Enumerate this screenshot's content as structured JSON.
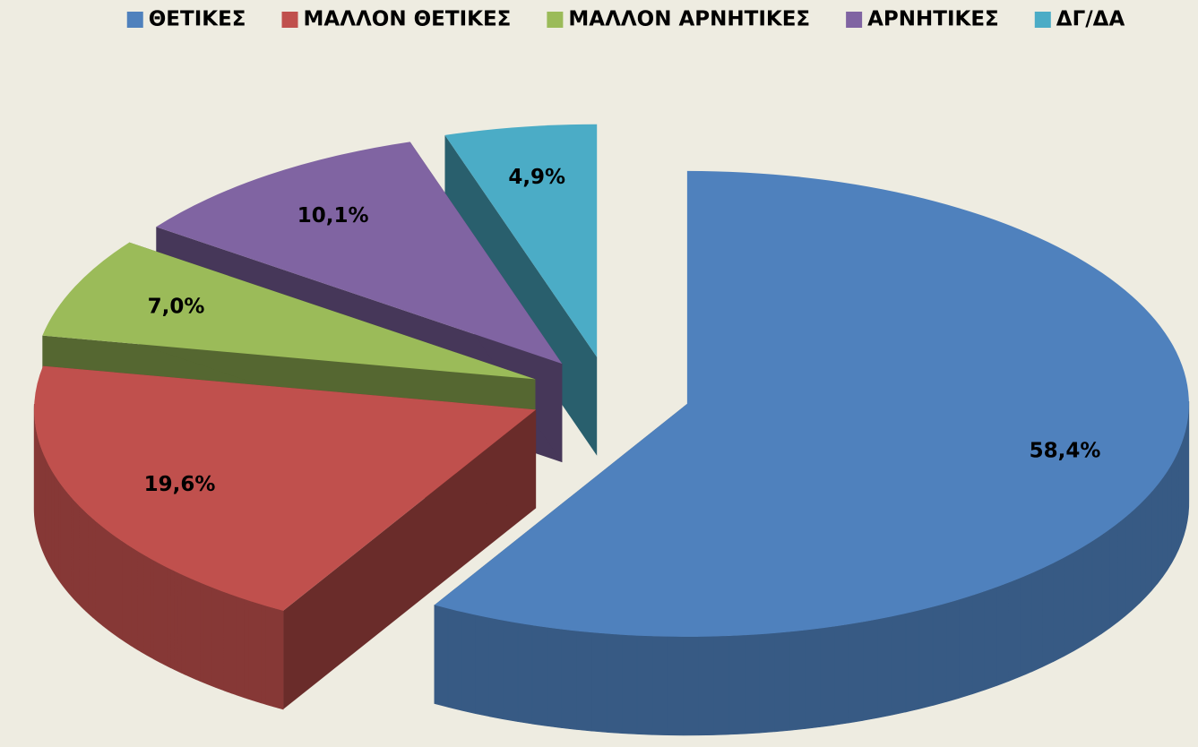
{
  "chart_data": {
    "type": "pie",
    "three_d": true,
    "exploded": true,
    "categories": [
      "ΘΕΤΙΚΕΣ",
      "ΜΑΛΛΟΝ ΘΕΤΙΚΕΣ",
      "ΜΑΛΛΟΝ ΑΡΝΗΤΙΚΕΣ",
      "ΑΡΝΗΤΙΚΕΣ",
      "ΔΓ/ΔΑ"
    ],
    "values": [
      58.4,
      19.6,
      7.0,
      10.1,
      4.9
    ],
    "value_labels": [
      "58,4%",
      "19,6%",
      "7,0%",
      "10,1%",
      "4,9%"
    ],
    "colors": [
      "#4f81bd",
      "#c0504d",
      "#9bbb59",
      "#8064a2",
      "#4bacc6"
    ],
    "legend": "top"
  }
}
